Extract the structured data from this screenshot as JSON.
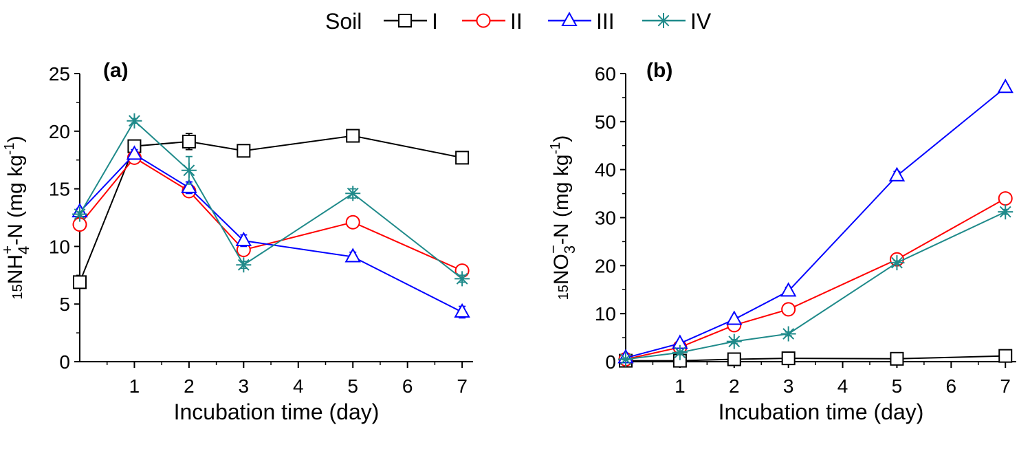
{
  "legend": {
    "title": "Soil",
    "placement": "top-center",
    "entries": [
      "I",
      "II",
      "III",
      "IV"
    ]
  },
  "colors": {
    "I": "#000000",
    "II": "#ff0000",
    "III": "#0000ff",
    "IV": "#1f8a8a"
  },
  "markers": {
    "I": "square",
    "II": "circle",
    "III": "triangle",
    "IV": "asterisk"
  },
  "chart_data": [
    {
      "type": "line",
      "panel_label": "(a)",
      "xlabel": "Incubation time (day)",
      "ylabel_parts": {
        "pre": "15",
        "main": "NH",
        "sub": "4",
        "sup": "+",
        "rest": "-N (mg kg",
        "exp": "-1",
        "close": ")"
      },
      "x": [
        0,
        1,
        2,
        3,
        5,
        7
      ],
      "xticks": [
        1,
        2,
        3,
        4,
        5,
        6,
        7
      ],
      "xlim": [
        0,
        7.2
      ],
      "ylim": [
        0,
        25
      ],
      "yticks": [
        0,
        5,
        10,
        15,
        20,
        25
      ],
      "grid": false,
      "series": [
        {
          "name": "I",
          "values": [
            6.9,
            18.7,
            19.1,
            18.3,
            19.6,
            17.7
          ],
          "errors": [
            0.2,
            0.2,
            0.7,
            0.2,
            0.4,
            0.3
          ]
        },
        {
          "name": "II",
          "values": [
            11.9,
            17.7,
            14.8,
            9.7,
            12.1,
            7.9
          ],
          "errors": [
            0.3,
            0.3,
            0.3,
            0.4,
            0.4,
            0.2
          ]
        },
        {
          "name": "III",
          "values": [
            13.0,
            18.0,
            15.1,
            10.5,
            9.1,
            4.3
          ],
          "errors": [
            0.3,
            0.4,
            0.5,
            0.5,
            0.4,
            0.5
          ]
        },
        {
          "name": "IV",
          "values": [
            12.8,
            20.9,
            16.6,
            8.4,
            14.6,
            7.2
          ],
          "errors": [
            0.2,
            0.2,
            1.2,
            0.3,
            0.4,
            0.3
          ]
        }
      ]
    },
    {
      "type": "line",
      "panel_label": "(b)",
      "xlabel": "Incubation time (day)",
      "ylabel_parts": {
        "pre": "15",
        "main": "NO",
        "sub": "3",
        "sup": "−",
        "rest": "-N (mg kg",
        "exp": "-1",
        "close": ")"
      },
      "x": [
        0,
        1,
        2,
        3,
        5,
        7
      ],
      "xticks": [
        1,
        2,
        3,
        4,
        5,
        6,
        7
      ],
      "xlim": [
        0,
        7.2
      ],
      "ylim": [
        0,
        60
      ],
      "yticks": [
        0,
        10,
        20,
        30,
        40,
        50,
        60
      ],
      "grid": false,
      "series": [
        {
          "name": "I",
          "values": [
            0.2,
            0.2,
            0.5,
            0.7,
            0.6,
            1.2
          ],
          "errors": [
            0.1,
            0.4,
            0.5,
            0.6,
            0.6,
            0.3
          ]
        },
        {
          "name": "II",
          "values": [
            0.5,
            3.0,
            7.6,
            10.9,
            21.3,
            34.0
          ],
          "errors": [
            0.2,
            0.4,
            0.5,
            0.5,
            0.4,
            0.8
          ]
        },
        {
          "name": "III",
          "values": [
            0.8,
            3.8,
            8.8,
            14.7,
            38.7,
            57.1
          ],
          "errors": [
            0.2,
            0.5,
            0.6,
            0.8,
            0.9,
            0.6
          ]
        },
        {
          "name": "IV",
          "values": [
            0.5,
            1.9,
            4.2,
            5.8,
            20.6,
            31.2
          ],
          "errors": [
            0.1,
            0.3,
            0.4,
            0.4,
            0.4,
            0.5
          ]
        }
      ]
    }
  ]
}
